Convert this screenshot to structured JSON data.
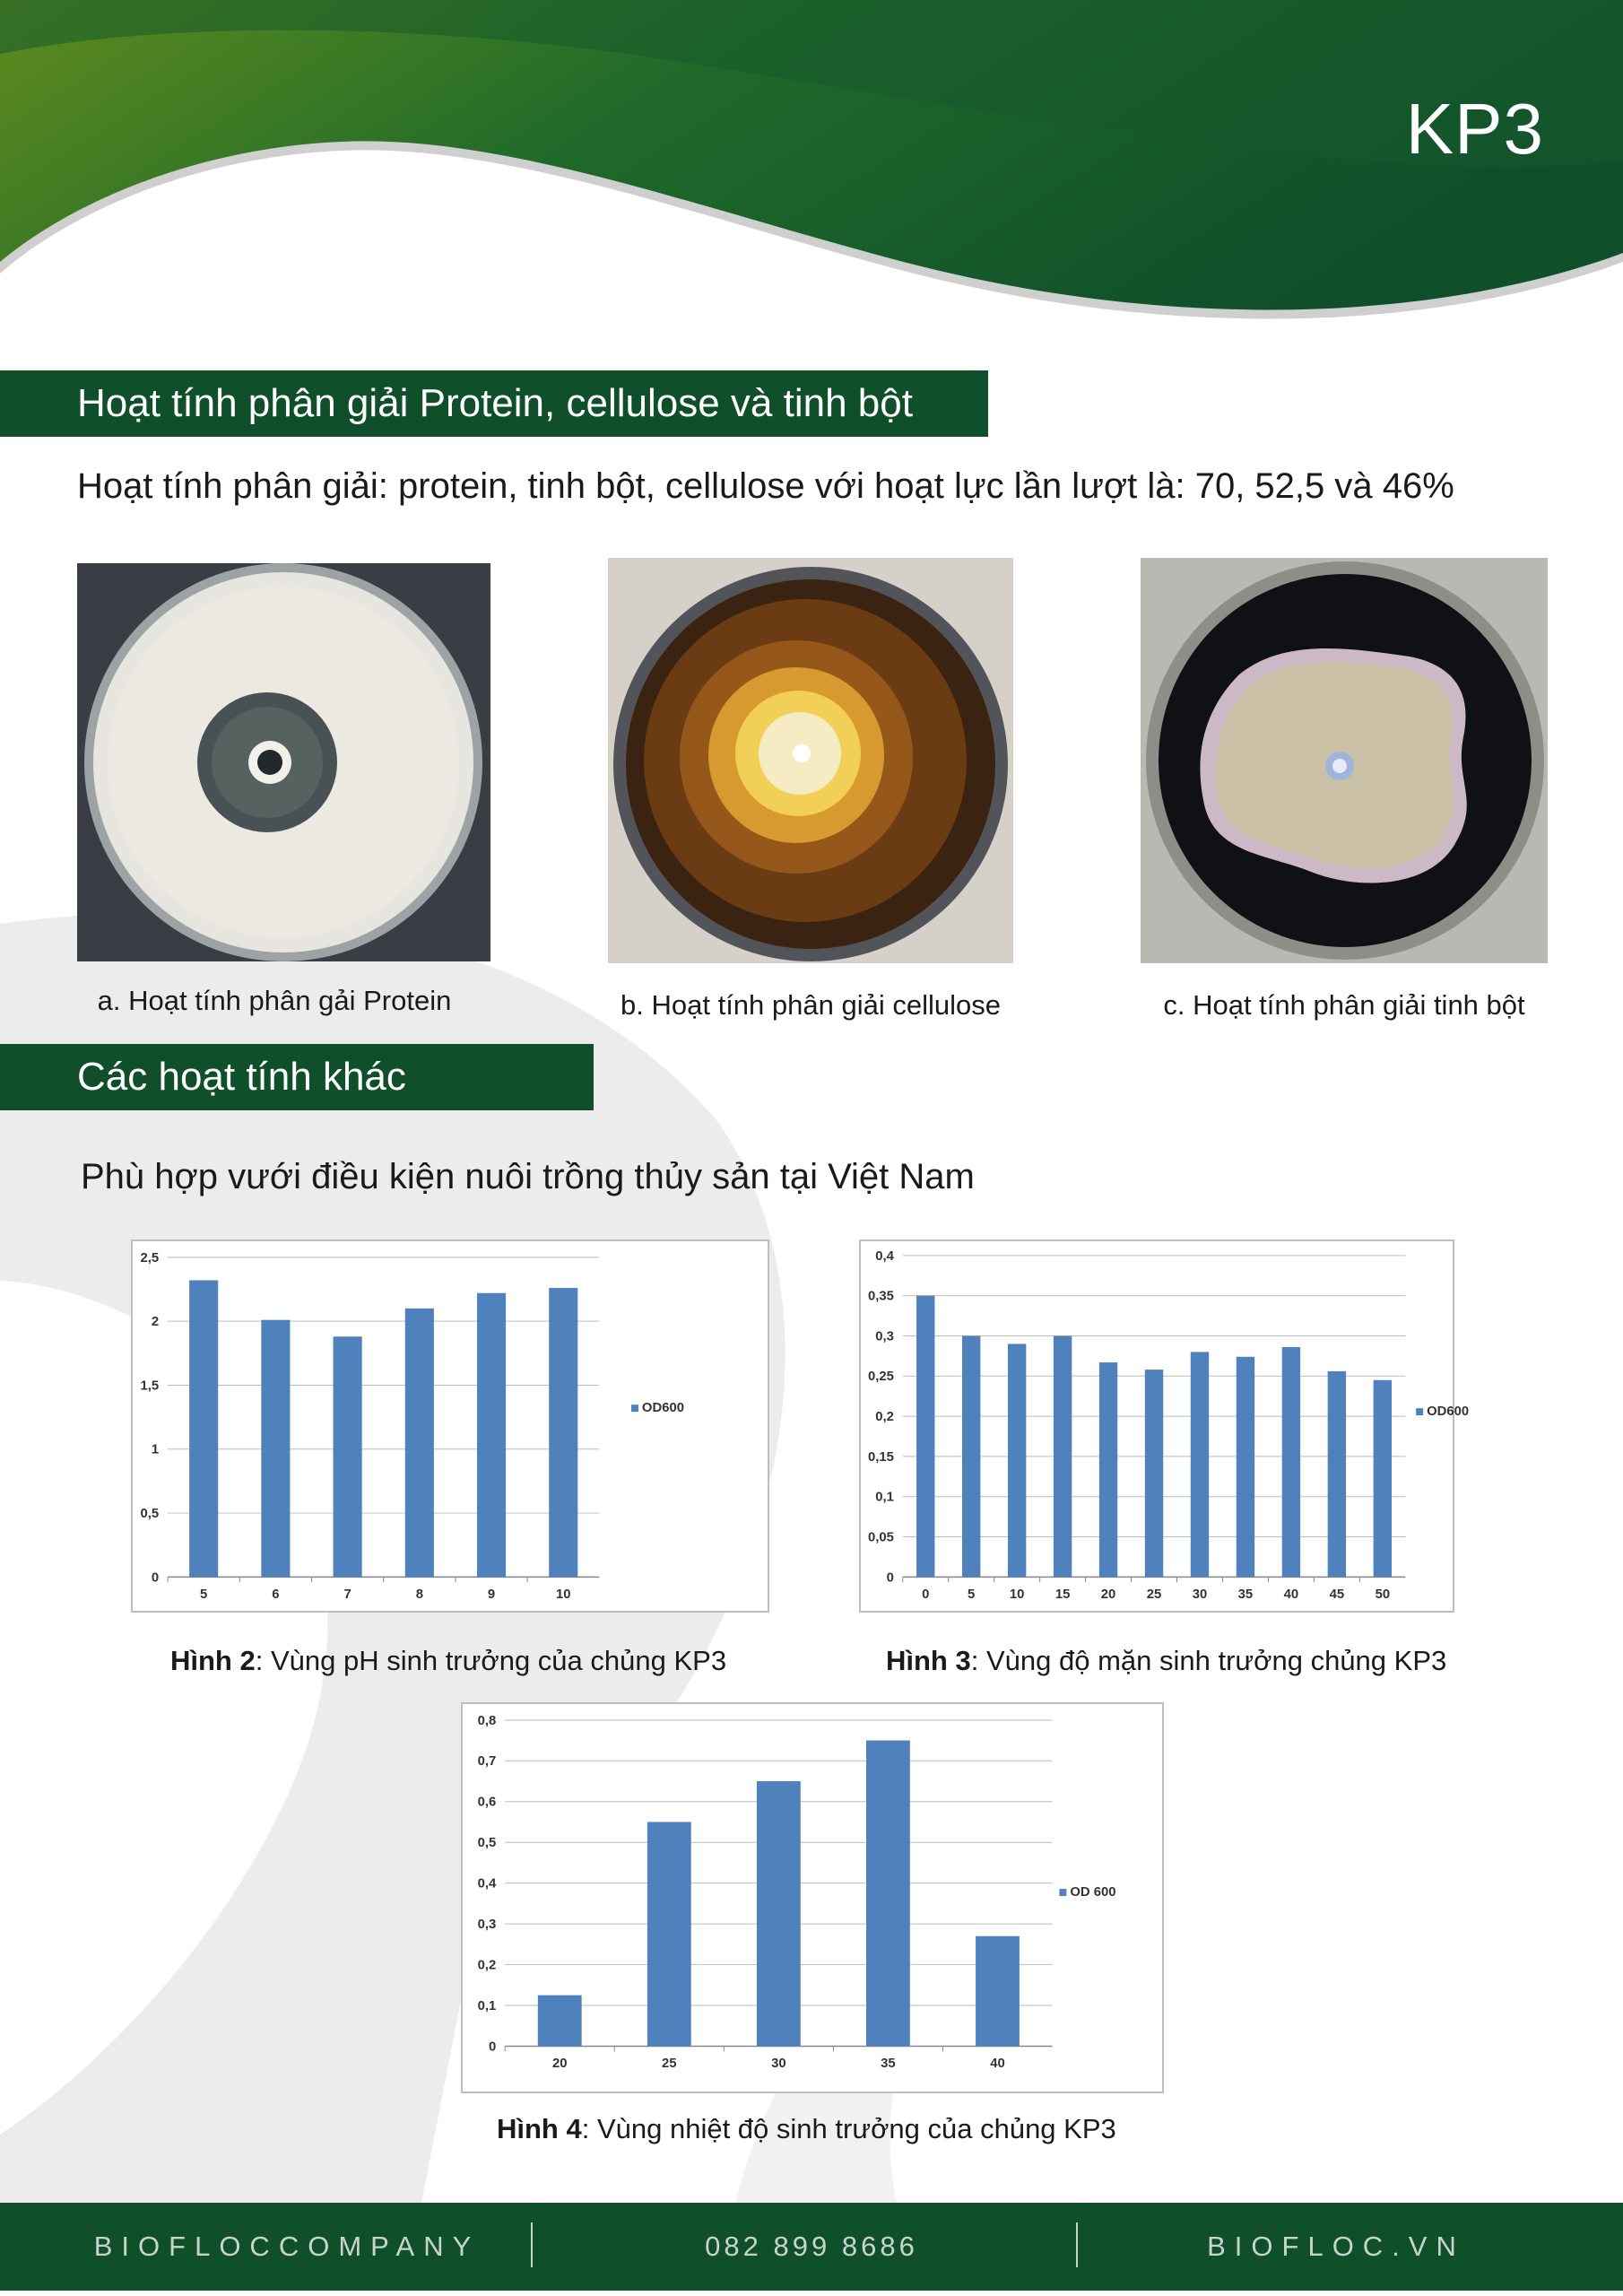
{
  "header": {
    "title": "KP3",
    "wave_dark": "#0f4f2a",
    "wave_light": "#5f8c1e"
  },
  "section1": {
    "title": "Hoạt tính phân giải Protein, cellulose và tinh bột",
    "lead": "Hoạt tính phân giải: protein, tinh bột, cellulose với hoạt lực lần lượt là: 70, 52,5 và 46%",
    "photos": [
      {
        "caption": "a. Hoạt tính phân gải Protein"
      },
      {
        "caption": "b. Hoạt tính phân giải cellulose"
      },
      {
        "caption": "c. Hoạt tính phân giải tinh bột"
      }
    ]
  },
  "section2": {
    "title": "Các hoạt tính khác",
    "lead": "Phù hợp vưới điều kiện nuôi trồng thủy sản tại Việt Nam"
  },
  "figures": [
    {
      "label": "Hình 2",
      "text": ": Vùng pH sinh trưởng của chủng KP3"
    },
    {
      "label": "Hình 3",
      "text": ": Vùng độ mặn sinh trưởng chủng KP3"
    },
    {
      "label": "Hình 4",
      "text": ": Vùng nhiệt độ sinh trưởng của chủng KP3"
    }
  ],
  "chart_data": [
    {
      "type": "bar",
      "categories": [
        "5",
        "6",
        "7",
        "8",
        "9",
        "10"
      ],
      "series": [
        {
          "name": "OD600",
          "values": [
            2.32,
            2.01,
            1.88,
            2.1,
            2.22,
            2.26
          ]
        }
      ],
      "ylim": [
        0,
        2.5
      ],
      "yticks": [
        "0",
        "0,5",
        "1",
        "1,5",
        "2",
        "2,5"
      ],
      "ytick_values": [
        0,
        0.5,
        1,
        1.5,
        2,
        2.5
      ],
      "grid": true,
      "legend": "right",
      "color": "#4f81bd"
    },
    {
      "type": "bar",
      "categories": [
        "0",
        "5",
        "10",
        "15",
        "20",
        "25",
        "30",
        "35",
        "40",
        "45",
        "50"
      ],
      "series": [
        {
          "name": "OD600",
          "values": [
            0.35,
            0.3,
            0.29,
            0.3,
            0.267,
            0.258,
            0.28,
            0.274,
            0.286,
            0.256,
            0.245
          ]
        }
      ],
      "ylim": [
        0,
        0.4
      ],
      "yticks": [
        "0",
        "0,05",
        "0,1",
        "0,15",
        "0,2",
        "0,25",
        "0,3",
        "0,35",
        "0,4"
      ],
      "ytick_values": [
        0,
        0.05,
        0.1,
        0.15,
        0.2,
        0.25,
        0.3,
        0.35,
        0.4
      ],
      "grid": true,
      "legend": "right",
      "color": "#4f81bd"
    },
    {
      "type": "bar",
      "categories": [
        "20",
        "25",
        "30",
        "35",
        "40"
      ],
      "series": [
        {
          "name": "OD 600",
          "values": [
            0.125,
            0.55,
            0.65,
            0.75,
            0.27
          ]
        }
      ],
      "ylim": [
        0,
        0.8
      ],
      "yticks": [
        "0",
        "0,1",
        "0,2",
        "0,3",
        "0,4",
        "0,5",
        "0,6",
        "0,7",
        "0,8"
      ],
      "ytick_values": [
        0,
        0.1,
        0.2,
        0.3,
        0.4,
        0.5,
        0.6,
        0.7,
        0.8
      ],
      "grid": true,
      "legend": "right",
      "color": "#4f81bd"
    }
  ],
  "footer": {
    "company": "BIOFLOCCOMPANY",
    "phone": "082 899 8686",
    "website": "BIOFLOC.VN"
  }
}
